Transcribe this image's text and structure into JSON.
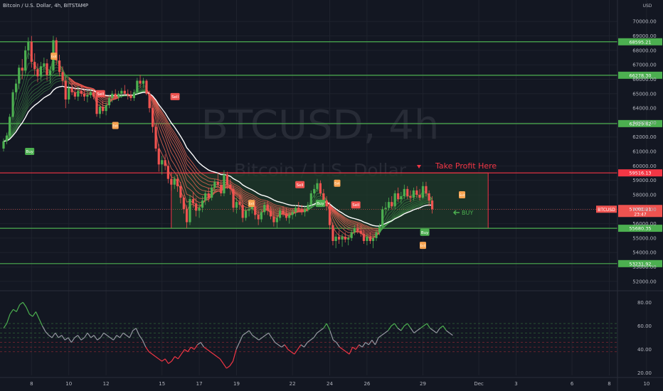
{
  "header": {
    "title": "Bitcoin / U.S. Dollar, 4h, BITSTAMP",
    "currency": "USD"
  },
  "watermark": {
    "symbol": "BTCUSD, 4h",
    "name": "Bitcoin / U.S. Dollar"
  },
  "annotations": {
    "take_profit": "Take Profit Here",
    "buy": "BUY"
  },
  "colors": {
    "background": "#131722",
    "up": "#26a69a",
    "up_bright": "#4caf50",
    "down": "#ef5350",
    "resistance": "#f23645",
    "support": "#4caf50",
    "zone_fill": "#1f3b2a",
    "ema_slow": "#ffffff",
    "rsi_bull": "#4caf50",
    "rsi_bear": "#f23645",
    "rsi_neutral": "#9598a1"
  },
  "chart_data": {
    "type": "candlestick",
    "symbol": "BTCUSD",
    "interval": "4h",
    "x_tick_labels": [
      "8",
      "10",
      "12",
      "15",
      "17",
      "19",
      "22",
      "24",
      "26",
      "29",
      "Dec",
      "3",
      "6",
      "8",
      "10"
    ],
    "y_tick_labels": [
      "70000.00",
      "69000.00",
      "68000.00",
      "67000.00",
      "66000.00",
      "65000.00",
      "64000.00",
      "63000.00",
      "62000.00",
      "61000.00",
      "60000.00",
      "59000.00",
      "58000.00",
      "57000.00",
      "56000.00",
      "55000.00",
      "54000.00",
      "53000.00",
      "52000.00"
    ],
    "ylim": [
      51500,
      70800
    ],
    "levels": [
      {
        "label": "68595.21",
        "value": 68595.21,
        "kind": "support"
      },
      {
        "label": "66278.30",
        "value": 66278.3,
        "kind": "support"
      },
      {
        "label": "62929.62",
        "value": 62929.62,
        "kind": "support"
      },
      {
        "label": "59516.13",
        "value": 59516.13,
        "kind": "resistance"
      },
      {
        "label": "55680.35",
        "value": 55680.35,
        "kind": "support"
      },
      {
        "label": "53231.92",
        "value": 53231.92,
        "kind": "support"
      }
    ],
    "last_price": {
      "symbol": "BTCUSD",
      "price": "57001.21",
      "countdown": "23:47"
    },
    "zone": {
      "from_day": 15.5,
      "to_day": 32.5,
      "low": 55680.35,
      "high": 59516.13
    },
    "signals": [
      {
        "label": "Buy",
        "day": 7.9,
        "price": 61000,
        "kind": "buy"
      },
      {
        "label": "Buy",
        "day": 16.1,
        "price": null,
        "kind": "buy",
        "hidden": true
      },
      {
        "label": "Sell",
        "day": 11.7,
        "price": 65000,
        "kind": "sell"
      },
      {
        "label": "Sell",
        "day": 15.7,
        "price": 64800,
        "kind": "sell"
      },
      {
        "label": "Sell",
        "day": 22.4,
        "price": 58700,
        "kind": "sell"
      },
      {
        "label": "Sell",
        "day": 25.4,
        "price": 57300,
        "kind": "sell"
      },
      {
        "label": "Buy",
        "day": 23.5,
        "price": 57400,
        "kind": "buy"
      },
      {
        "label": "Buy",
        "day": 29.1,
        "price": 55400,
        "kind": "buy"
      },
      {
        "label": "Exit",
        "day": 9.2,
        "price": 67600,
        "kind": "exit"
      },
      {
        "label": "Exit",
        "day": 12.5,
        "price": 62800,
        "kind": "exit"
      },
      {
        "label": "Exit",
        "day": 19.8,
        "price": 57400,
        "kind": "exit"
      },
      {
        "label": "Exit",
        "day": 24.4,
        "price": 58800,
        "kind": "exit"
      },
      {
        "label": "Exit",
        "day": 29.0,
        "price": 54500,
        "kind": "exit"
      },
      {
        "label": "Exit",
        "day": 31.1,
        "price": 58000,
        "kind": "exit"
      }
    ],
    "candles": [
      [
        6.5,
        61200,
        61900,
        61000,
        61700
      ],
      [
        6.67,
        61700,
        62300,
        61500,
        62100
      ],
      [
        6.83,
        62100,
        63600,
        61900,
        63400
      ],
      [
        7.0,
        63400,
        65300,
        63200,
        65100
      ],
      [
        7.17,
        65100,
        66000,
        64600,
        65700
      ],
      [
        7.33,
        65700,
        67000,
        65300,
        66800
      ],
      [
        7.5,
        66800,
        67400,
        66000,
        66600
      ],
      [
        7.67,
        66600,
        68300,
        66400,
        68000
      ],
      [
        7.83,
        68000,
        68900,
        67400,
        68600
      ],
      [
        8.0,
        68600,
        69000,
        66800,
        67200
      ],
      [
        8.17,
        67200,
        67800,
        66300,
        66700
      ],
      [
        8.33,
        66700,
        67100,
        65800,
        66200
      ],
      [
        8.5,
        66200,
        67200,
        65900,
        66900
      ],
      [
        8.67,
        66900,
        67500,
        66500,
        67100
      ],
      [
        8.83,
        67100,
        67400,
        65900,
        66300
      ],
      [
        9.0,
        66300,
        66900,
        65700,
        66600
      ],
      [
        9.17,
        66600,
        69000,
        66400,
        68700
      ],
      [
        9.33,
        68700,
        68900,
        67000,
        67300
      ],
      [
        9.5,
        67300,
        67700,
        66200,
        66500
      ],
      [
        9.67,
        66500,
        66900,
        65600,
        65900
      ],
      [
        9.83,
        65900,
        66200,
        64000,
        64600
      ],
      [
        10.0,
        64600,
        65700,
        64300,
        65400
      ],
      [
        10.17,
        65400,
        65800,
        64900,
        65100
      ],
      [
        10.33,
        65100,
        65500,
        64600,
        64800
      ],
      [
        10.5,
        64800,
        65500,
        64500,
        65200
      ],
      [
        10.67,
        65200,
        65600,
        64800,
        65000
      ],
      [
        10.83,
        65000,
        65300,
        64500,
        64800
      ],
      [
        11.0,
        64800,
        65200,
        64400,
        64900
      ],
      [
        11.17,
        64900,
        65300,
        64700,
        65100
      ],
      [
        11.33,
        65100,
        65300,
        64600,
        64800
      ],
      [
        11.5,
        64800,
        65000,
        63400,
        63600
      ],
      [
        11.67,
        63600,
        64300,
        63300,
        64100
      ],
      [
        11.83,
        64100,
        64500,
        63600,
        63800
      ],
      [
        12.0,
        63800,
        64400,
        63500,
        64200
      ],
      [
        12.17,
        64200,
        64900,
        64000,
        64700
      ],
      [
        12.33,
        64700,
        65200,
        64400,
        65000
      ],
      [
        12.5,
        65000,
        65300,
        64600,
        64800
      ],
      [
        12.67,
        64800,
        65200,
        64500,
        65000
      ],
      [
        12.83,
        65000,
        65400,
        64700,
        65200
      ],
      [
        13.0,
        65200,
        65600,
        64900,
        65000
      ],
      [
        13.17,
        65000,
        65300,
        64600,
        64900
      ],
      [
        13.33,
        64900,
        65200,
        64500,
        64700
      ],
      [
        13.5,
        64700,
        65300,
        64500,
        65100
      ],
      [
        13.67,
        65100,
        66100,
        64900,
        65900
      ],
      [
        13.83,
        65900,
        66300,
        65400,
        65700
      ],
      [
        14.0,
        65700,
        66100,
        65400,
        65900
      ],
      [
        14.17,
        65900,
        66000,
        64900,
        65000
      ],
      [
        14.33,
        65000,
        65200,
        63700,
        64000
      ],
      [
        14.5,
        64000,
        64200,
        62300,
        62700
      ],
      [
        14.67,
        62700,
        62900,
        61000,
        61200
      ],
      [
        14.83,
        61200,
        61500,
        59600,
        60100
      ],
      [
        15.0,
        60100,
        60700,
        59400,
        60400
      ],
      [
        15.17,
        60400,
        60800,
        59700,
        60000
      ],
      [
        15.33,
        60000,
        60400,
        58800,
        59100
      ],
      [
        15.5,
        59100,
        59600,
        58300,
        58700
      ],
      [
        15.67,
        58700,
        59300,
        58400,
        59100
      ],
      [
        15.83,
        59100,
        59400,
        58200,
        58600
      ],
      [
        16.0,
        58600,
        58900,
        57400,
        57800
      ],
      [
        16.17,
        57800,
        58000,
        56700,
        57000
      ],
      [
        16.33,
        57000,
        57300,
        55700,
        56100
      ],
      [
        16.5,
        56100,
        58000,
        55900,
        57700
      ],
      [
        16.67,
        57700,
        58200,
        57100,
        57400
      ],
      [
        16.83,
        57400,
        57800,
        56500,
        56900
      ],
      [
        17.0,
        56900,
        57400,
        56400,
        57100
      ],
      [
        17.17,
        57100,
        57900,
        56800,
        57600
      ],
      [
        17.33,
        57600,
        58300,
        57300,
        58100
      ],
      [
        17.5,
        58100,
        58500,
        57500,
        57800
      ],
      [
        17.67,
        57800,
        58700,
        57600,
        58500
      ],
      [
        17.83,
        58500,
        59100,
        58200,
        58900
      ],
      [
        18.0,
        58900,
        59500,
        58500,
        58700
      ],
      [
        18.17,
        58700,
        59000,
        57900,
        58100
      ],
      [
        18.33,
        58100,
        59700,
        57900,
        59400
      ],
      [
        18.5,
        59400,
        59600,
        58400,
        58700
      ],
      [
        18.67,
        58700,
        59100,
        58000,
        58400
      ],
      [
        18.83,
        58400,
        58600,
        56800,
        57100
      ],
      [
        19.0,
        57100,
        57800,
        56700,
        57500
      ],
      [
        19.17,
        57500,
        58000,
        57000,
        57300
      ],
      [
        19.33,
        57300,
        57600,
        56100,
        56400
      ],
      [
        19.5,
        56400,
        57100,
        56200,
        56900
      ],
      [
        19.67,
        56900,
        57300,
        56500,
        57000
      ],
      [
        19.83,
        57000,
        57500,
        56700,
        57200
      ],
      [
        20.0,
        57200,
        57600,
        56300,
        56600
      ],
      [
        20.17,
        56600,
        56900,
        55900,
        56300
      ],
      [
        20.33,
        56300,
        57000,
        56100,
        56800
      ],
      [
        20.5,
        56800,
        57500,
        56600,
        57300
      ],
      [
        20.67,
        57300,
        57600,
        56600,
        56900
      ],
      [
        20.83,
        56900,
        57200,
        56300,
        56500
      ],
      [
        21.0,
        56500,
        56900,
        55800,
        56100
      ],
      [
        21.17,
        56100,
        56600,
        55700,
        56400
      ],
      [
        21.33,
        56400,
        57100,
        56200,
        56900
      ],
      [
        21.5,
        56900,
        57200,
        56500,
        56700
      ],
      [
        21.67,
        56700,
        57100,
        56200,
        56400
      ],
      [
        21.83,
        56400,
        56800,
        56000,
        56600
      ],
      [
        22.0,
        56600,
        57000,
        56300,
        56800
      ],
      [
        22.17,
        56800,
        57300,
        56500,
        57100
      ],
      [
        22.33,
        57100,
        57500,
        56800,
        57000
      ],
      [
        22.5,
        57000,
        57300,
        56600,
        56800
      ],
      [
        22.67,
        56800,
        57200,
        56500,
        57000
      ],
      [
        22.83,
        57000,
        57500,
        56800,
        57300
      ],
      [
        23.0,
        57300,
        58300,
        57100,
        58100
      ],
      [
        23.17,
        58100,
        58700,
        57800,
        58400
      ],
      [
        23.33,
        58400,
        59100,
        58200,
        58800
      ],
      [
        23.5,
        58800,
        59000,
        57900,
        58100
      ],
      [
        23.67,
        58100,
        58400,
        57300,
        57600
      ],
      [
        23.83,
        57600,
        57900,
        56900,
        57200
      ],
      [
        24.0,
        57200,
        57500,
        55600,
        55900
      ],
      [
        24.17,
        55900,
        56100,
        54500,
        54800
      ],
      [
        24.33,
        54800,
        55300,
        54300,
        55100
      ],
      [
        24.5,
        55100,
        55500,
        54600,
        54900
      ],
      [
        24.67,
        54900,
        55300,
        54400,
        55100
      ],
      [
        24.83,
        55100,
        55400,
        54700,
        54900
      ],
      [
        25.0,
        54900,
        55200,
        54500,
        55000
      ],
      [
        25.17,
        55000,
        55600,
        54800,
        55400
      ],
      [
        25.33,
        55400,
        55900,
        55200,
        55700
      ],
      [
        25.5,
        55700,
        56000,
        55300,
        55500
      ],
      [
        25.67,
        55500,
        55900,
        55100,
        55300
      ],
      [
        25.83,
        55300,
        55600,
        54600,
        54800
      ],
      [
        26.0,
        54800,
        55300,
        54500,
        55100
      ],
      [
        26.17,
        55100,
        55400,
        54600,
        54800
      ],
      [
        26.33,
        54800,
        55200,
        54300,
        55000
      ],
      [
        26.5,
        55000,
        55600,
        54800,
        55400
      ],
      [
        26.67,
        55400,
        56000,
        55200,
        55800
      ],
      [
        26.83,
        55800,
        57200,
        55600,
        57000
      ],
      [
        27.0,
        57000,
        57500,
        56600,
        57100
      ],
      [
        27.17,
        57100,
        57800,
        56900,
        57500
      ],
      [
        27.33,
        57500,
        57900,
        57000,
        57200
      ],
      [
        27.5,
        57200,
        58300,
        57000,
        58100
      ],
      [
        27.67,
        58100,
        58500,
        57500,
        57700
      ],
      [
        27.83,
        57700,
        58200,
        57400,
        57900
      ],
      [
        28.0,
        57900,
        58700,
        57700,
        58400
      ],
      [
        28.17,
        58400,
        58600,
        57700,
        57900
      ],
      [
        28.33,
        57900,
        58300,
        57500,
        57800
      ],
      [
        28.5,
        57800,
        58500,
        57600,
        58300
      ],
      [
        28.67,
        58300,
        58600,
        57800,
        58000
      ],
      [
        28.83,
        58000,
        58400,
        57600,
        57800
      ],
      [
        29.0,
        57800,
        58900,
        57700,
        58600
      ],
      [
        29.17,
        58600,
        58900,
        57900,
        58100
      ],
      [
        29.33,
        58100,
        58300,
        57200,
        57600
      ],
      [
        29.5,
        57600,
        57900,
        56700,
        57000
      ]
    ],
    "rsi": {
      "ylim": [
        18,
        88
      ],
      "y_tick_labels": [
        "80.00",
        "60.00",
        "40.00",
        "20.00"
      ],
      "bands": [
        62,
        58,
        54,
        50,
        46,
        42,
        38
      ],
      "values": [
        58,
        62,
        70,
        74,
        72,
        78,
        80,
        76,
        70,
        68,
        72,
        66,
        60,
        55,
        52,
        50,
        54,
        50,
        52,
        48,
        50,
        46,
        50,
        52,
        48,
        50,
        54,
        50,
        52,
        48,
        50,
        54,
        52,
        50,
        48,
        52,
        50,
        54,
        52,
        50,
        56,
        58,
        52,
        48,
        42,
        38,
        36,
        34,
        32,
        30,
        32,
        28,
        30,
        34,
        32,
        36,
        40,
        38,
        42,
        40,
        44,
        46,
        42,
        40,
        38,
        36,
        34,
        32,
        28,
        24,
        26,
        30,
        40,
        46,
        52,
        54,
        56,
        52,
        50,
        48,
        50,
        52,
        54,
        50,
        46,
        44,
        42,
        44,
        40,
        38,
        36,
        40,
        44,
        42,
        46,
        48,
        50,
        54,
        56,
        58,
        62,
        56,
        48,
        46,
        42,
        40,
        38,
        36,
        42,
        40,
        44,
        42,
        46,
        44,
        48,
        44,
        50,
        52,
        54,
        56,
        60,
        62,
        58,
        56,
        60,
        62,
        58,
        54,
        56,
        58,
        60,
        62,
        58,
        56,
        54,
        58,
        60,
        56,
        54,
        52
      ]
    }
  }
}
